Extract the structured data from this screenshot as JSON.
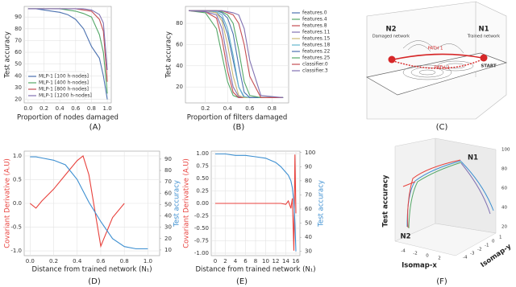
{
  "chart_data": [
    {
      "type": "line",
      "label": "(A)",
      "xlabel": "Proportion of nodes damaged",
      "ylabel": "Test accuracy",
      "x": [
        0,
        0.1,
        0.2,
        0.3,
        0.4,
        0.5,
        0.6,
        0.7,
        0.8,
        0.9,
        0.95,
        1.0
      ],
      "series": [
        {
          "name": "MLP-1 [100 h-nodes]",
          "color": "#4c72b0",
          "values": [
            97,
            97,
            96,
            95,
            94,
            92,
            88,
            80,
            65,
            55,
            40,
            20
          ]
        },
        {
          "name": "MLP-1 [400 h-nodes]",
          "color": "#55a868",
          "values": [
            97,
            97,
            97,
            97,
            97,
            96,
            95,
            93,
            90,
            75,
            60,
            25
          ]
        },
        {
          "name": "MLP-1 [800 h-nodes]",
          "color": "#c44e52",
          "values": [
            97,
            97,
            97,
            97,
            97,
            97,
            97,
            96,
            95,
            88,
            78,
            35
          ]
        },
        {
          "name": "MLP-1 [1200 h-nodes]",
          "color": "#8172b2",
          "values": [
            97,
            97,
            97,
            97,
            97,
            97,
            97,
            97,
            96,
            92,
            85,
            45
          ]
        }
      ],
      "xlim": [
        -0.05,
        1.05
      ],
      "xticks": [
        {
          "value": 0,
          "label": "0.0"
        },
        0.2,
        0.4,
        0.6,
        0.8,
        {
          "value": 1,
          "label": "1.0"
        }
      ],
      "ylim": [
        17,
        99
      ],
      "yticks": [
        20,
        30,
        40,
        50,
        60,
        70,
        80,
        90
      ],
      "grid": true,
      "legend": "lower left"
    },
    {
      "type": "line",
      "label": "(B)",
      "xlabel": "Proportion of filters damaged",
      "ylabel": "Test accuracy",
      "x": [
        0.05,
        0.2,
        0.3,
        0.35,
        0.4,
        0.45,
        0.5,
        0.55,
        0.6,
        0.7,
        0.9
      ],
      "series": [
        {
          "name": "features.0",
          "color": "#4c72b0",
          "values": [
            92,
            92,
            90,
            85,
            70,
            45,
            20,
            10,
            10,
            10,
            10
          ]
        },
        {
          "name": "features.4",
          "color": "#55a868",
          "values": [
            92,
            90,
            75,
            50,
            25,
            12,
            10,
            10,
            10,
            10,
            10
          ]
        },
        {
          "name": "features.8",
          "color": "#c44e52",
          "values": [
            92,
            91,
            85,
            65,
            35,
            15,
            10,
            10,
            10,
            10,
            10
          ]
        },
        {
          "name": "features.11",
          "color": "#8172b2",
          "values": [
            92,
            91,
            88,
            75,
            45,
            20,
            11,
            10,
            10,
            10,
            10
          ]
        },
        {
          "name": "features.15",
          "color": "#ccb974",
          "values": [
            92,
            92,
            90,
            82,
            60,
            30,
            12,
            10,
            10,
            10,
            10
          ]
        },
        {
          "name": "features.18",
          "color": "#64b5cd",
          "values": [
            92,
            92,
            91,
            88,
            75,
            50,
            20,
            11,
            10,
            10,
            10
          ]
        },
        {
          "name": "features.22",
          "color": "#4c72b0",
          "values": [
            92,
            92,
            92,
            90,
            85,
            70,
            40,
            15,
            10,
            10,
            10
          ]
        },
        {
          "name": "features.25",
          "color": "#55a868",
          "values": [
            92,
            92,
            92,
            91,
            88,
            80,
            55,
            25,
            12,
            10,
            10
          ]
        },
        {
          "name": "classifier.0",
          "color": "#c44e52",
          "values": [
            92,
            92,
            92,
            92,
            90,
            88,
            80,
            60,
            30,
            10,
            10
          ]
        },
        {
          "name": "classifier.3",
          "color": "#8172b2",
          "values": [
            92,
            92,
            92,
            92,
            91,
            90,
            88,
            75,
            45,
            12,
            10
          ]
        }
      ],
      "xlim": [
        0.02,
        0.95
      ],
      "xticks": [
        0.2,
        0.4,
        0.6,
        0.8
      ],
      "ylim": [
        5,
        96
      ],
      "yticks": [
        20,
        40,
        60,
        80
      ],
      "grid": true,
      "legend": "right"
    },
    {
      "type": "line",
      "label": "(D)",
      "xlabel": "Distance from trained network (N₁)",
      "ylabel": "Covariant Derivative (A.U)",
      "y2label": "Test accuracy",
      "x": [
        0,
        0.05,
        0.1,
        0.2,
        0.3,
        0.4,
        0.45,
        0.5,
        0.6,
        0.7,
        0.8,
        0.9,
        1.0
      ],
      "series": [
        {
          "color": "#e8413c",
          "values": [
            0.0,
            -0.1,
            0.05,
            0.3,
            0.6,
            0.9,
            1.0,
            0.6,
            -0.9,
            -0.3,
            0.0,
            null,
            null
          ]
        },
        {
          "color": "#3d8fd1",
          "axis": "y2",
          "values": [
            92,
            92,
            91,
            89,
            85,
            72,
            62,
            52,
            35,
            20,
            13,
            11,
            11
          ]
        }
      ],
      "xlim": [
        -0.05,
        1.1
      ],
      "xticks": [
        {
          "value": 0,
          "label": "0.0"
        },
        0.2,
        0.4,
        0.6,
        0.8,
        {
          "value": 1,
          "label": "1.0"
        }
      ],
      "ylim": [
        -1.1,
        1.1
      ],
      "yticks": [
        {
          "value": -1,
          "label": "-1.0"
        },
        -0.5,
        {
          "value": 0,
          "label": "0.0"
        },
        0.5,
        {
          "value": 1,
          "label": "1.0"
        }
      ],
      "y2lim": [
        5,
        97
      ],
      "y2ticks": [
        10,
        20,
        30,
        40,
        50,
        60,
        70,
        80,
        90
      ],
      "grid": true
    },
    {
      "type": "line",
      "label": "(E)",
      "xlabel": "Distance from trained network (N₁)",
      "ylabel": "Covariant Derivative (A.U)",
      "y2label": "Test accuracy",
      "x": [
        0,
        2,
        4,
        6,
        8,
        10,
        12,
        13,
        14,
        14.5,
        15,
        15.3,
        15.6,
        15.8,
        16
      ],
      "series": [
        {
          "color": "#e8413c",
          "values": [
            0,
            0,
            0,
            0,
            0,
            0,
            0,
            0,
            -0.02,
            0.05,
            -0.1,
            0.1,
            -0.95,
            0.98,
            -0.2
          ]
        },
        {
          "color": "#3d8fd1",
          "axis": "y2",
          "values": [
            99,
            99,
            98,
            98,
            97,
            96,
            93,
            90,
            86,
            84,
            80,
            75,
            65,
            50,
            30
          ]
        }
      ],
      "xlim": [
        -0.8,
        16.8
      ],
      "xticks": [
        0,
        2,
        4,
        6,
        8,
        10,
        12,
        14,
        16
      ],
      "ylim": [
        -1.05,
        1.05
      ],
      "yticks": [
        {
          "value": -1,
          "label": "-1.00"
        },
        -0.75,
        {
          "value": -0.5,
          "label": "-0.50"
        },
        -0.25,
        {
          "value": 0,
          "label": "0.00"
        },
        0.25,
        {
          "value": 0.5,
          "label": "0.50"
        },
        0.75,
        {
          "value": 1,
          "label": "1.00"
        }
      ],
      "y2lim": [
        27,
        101
      ],
      "y2ticks": [
        30,
        40,
        50,
        60,
        70,
        80,
        90,
        100
      ],
      "grid": true
    }
  ],
  "diagram_c": {
    "label": "(C)",
    "n1": "N1",
    "n1_note": "Trained network",
    "n2": "N2",
    "n2_note": "Damaged network",
    "path1": "PATH 1",
    "path2": "PATH 2",
    "start": "START"
  },
  "diagram_f": {
    "label": "(F)",
    "n1": "N1",
    "n2": "N2",
    "zlabel": "Test accuracy",
    "xlabel": "Isomap-x",
    "ylabel": "Isomap-y",
    "zticks": [
      "20",
      "40",
      "60",
      "80",
      "100"
    ],
    "xticks": [
      "-4",
      "-2",
      "0",
      "2"
    ],
    "yticks": [
      "-4",
      "-3",
      "-2",
      "-1",
      "0",
      "1"
    ]
  }
}
